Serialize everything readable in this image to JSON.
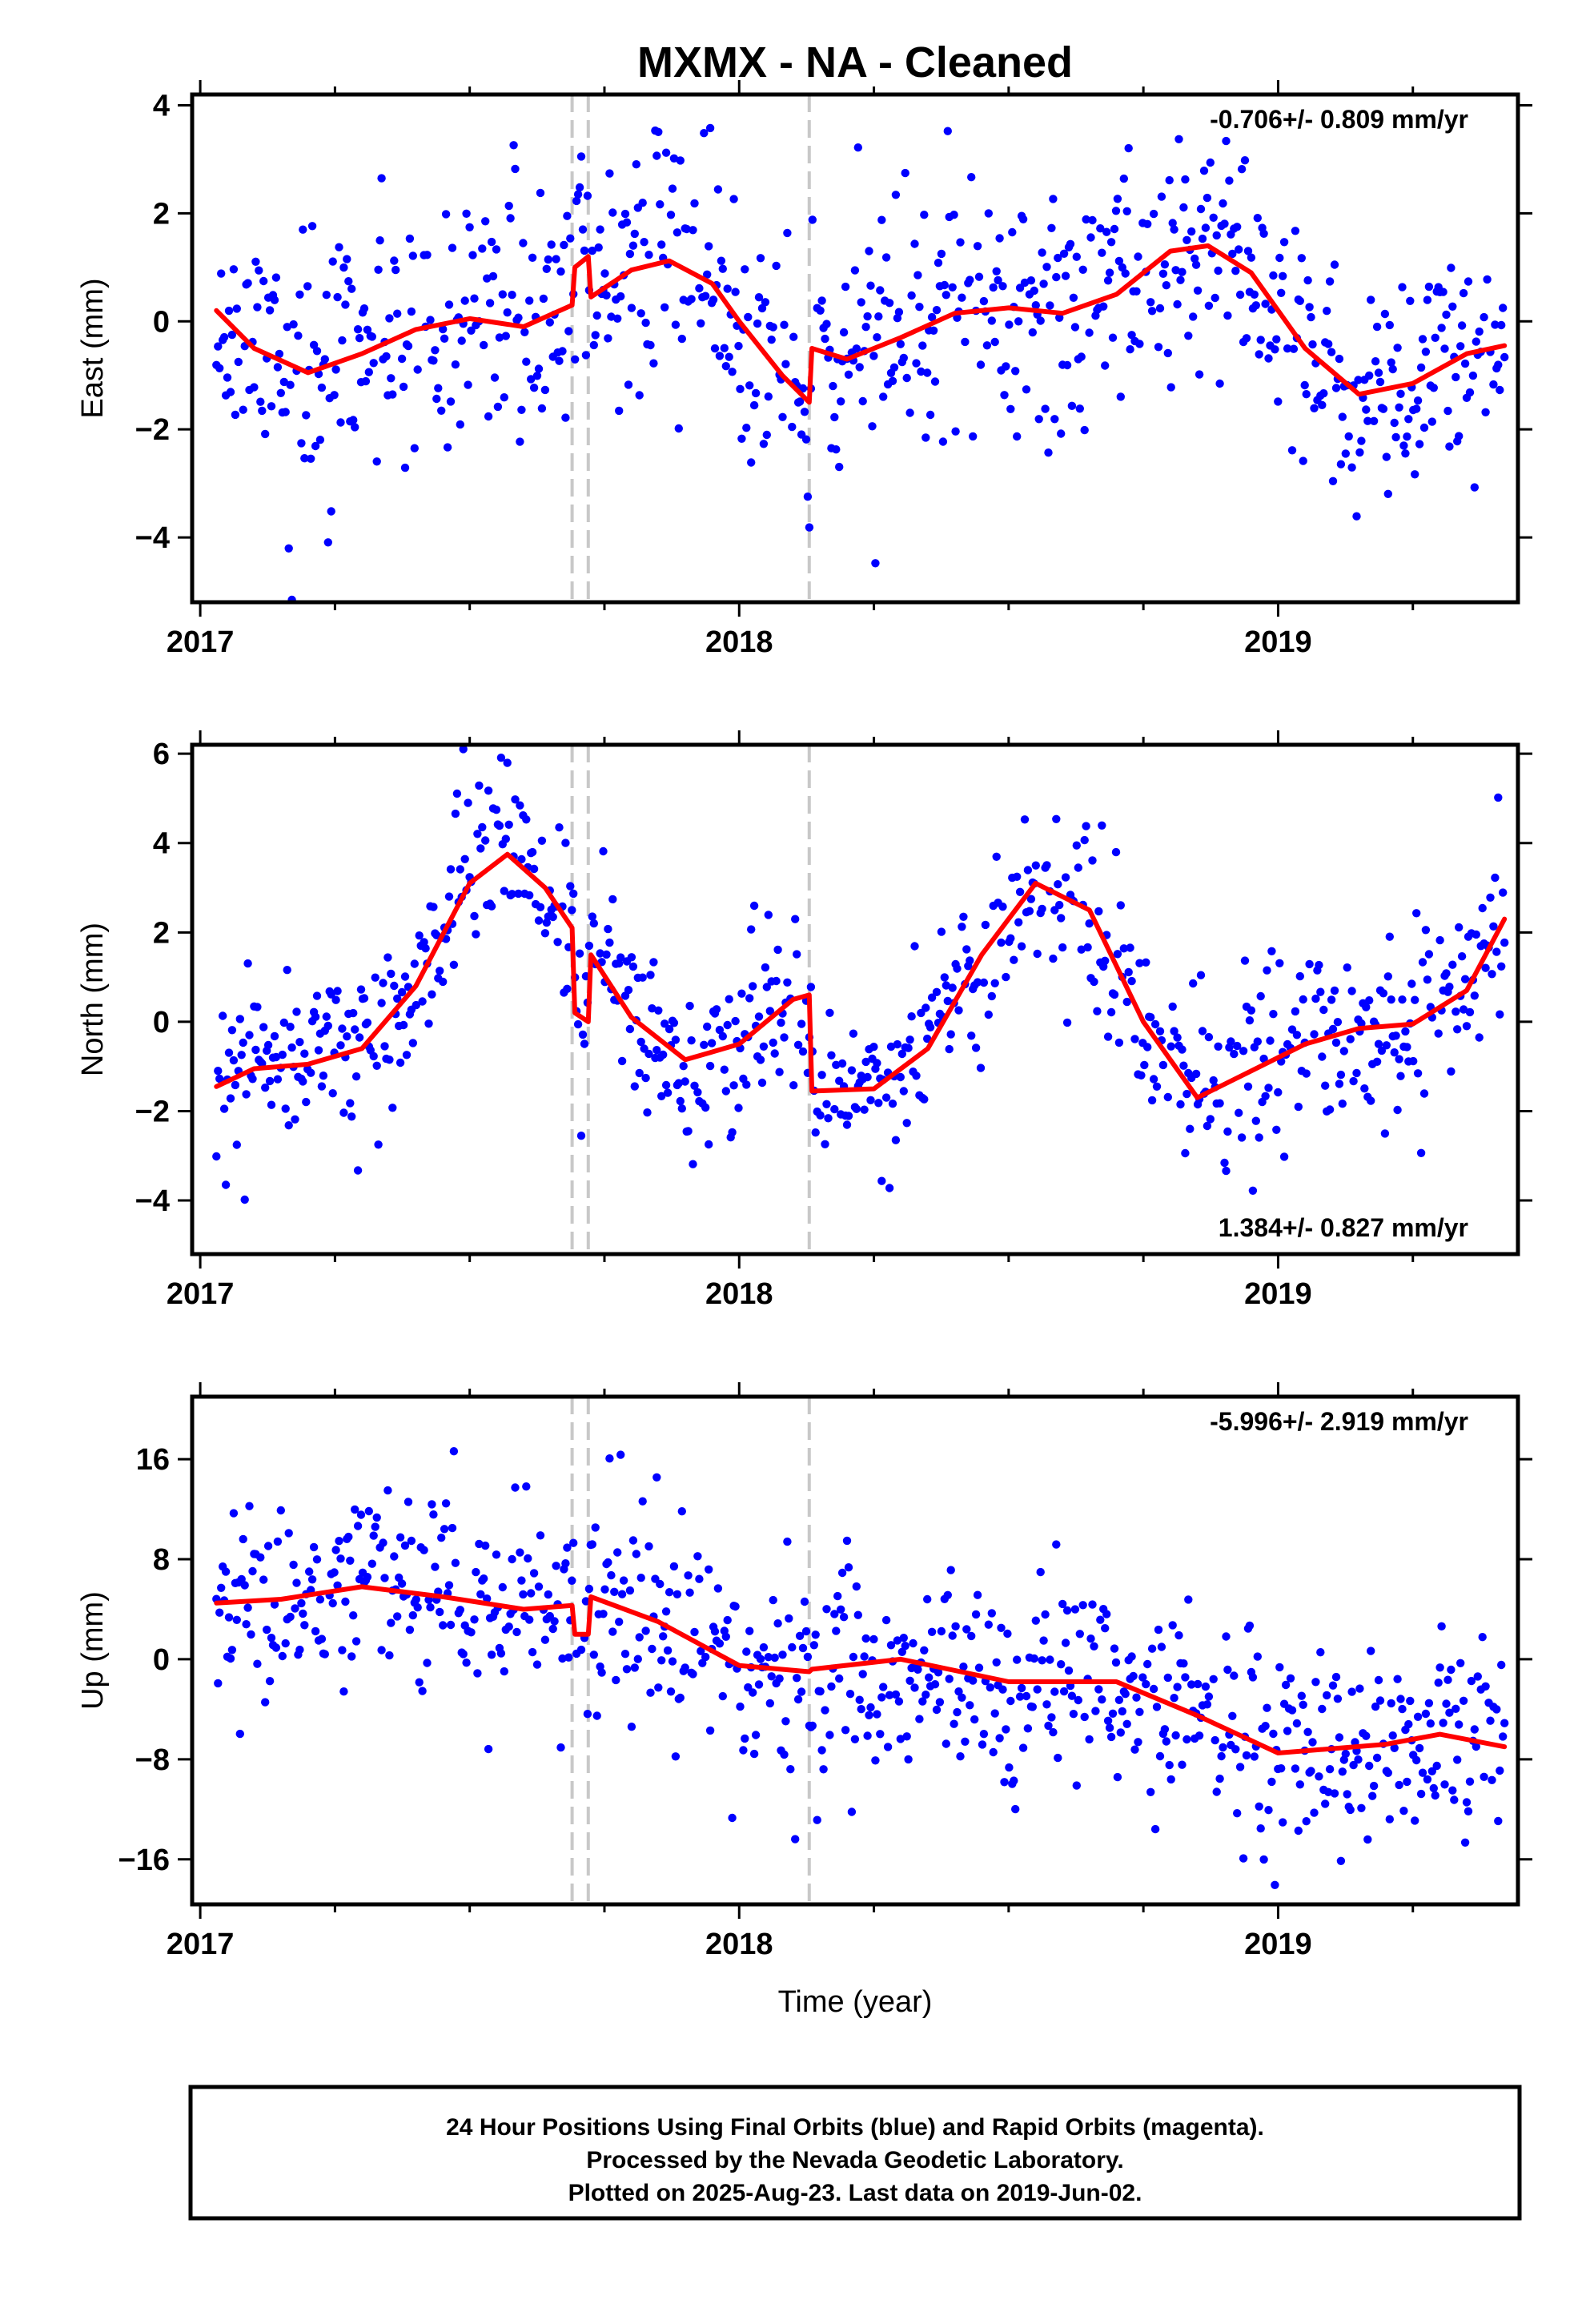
{
  "title": "MXMX  - NA - Cleaned",
  "xlabel": "Time (year)",
  "footer": [
    "24 Hour Positions Using Final Orbits (blue) and Rapid Orbits (magenta).",
    "Processed by the Nevada Geodetic Laboratory.",
    "Plotted on 2025-Aug-23. Last data on 2019-Jun-02."
  ],
  "colors": {
    "points": "#0000ff",
    "model": "#ff0000",
    "breaks": "#c8c8c8",
    "frame": "#000000"
  },
  "chart_data": [
    {
      "type": "scatter",
      "name": "east",
      "ylabel": "East (mm)",
      "rate_text": "-0.706+/- 0.809 mm/yr",
      "rate_position": "top-right",
      "xlim": [
        2016.985,
        2019.445
      ],
      "ylim": [
        -5.2,
        4.2
      ],
      "xticks": [
        2017,
        2018,
        2019
      ],
      "xtick_labels": [
        "2017",
        "2018",
        "2019"
      ],
      "yticks": [
        -4,
        -2,
        0,
        2,
        4
      ],
      "ytick_labels": [
        "−4",
        "−2",
        "0",
        "2",
        "4"
      ],
      "breaks": [
        2017.69,
        2017.72,
        2018.13
      ],
      "model_knots": [
        [
          2017.03,
          0.2
        ],
        [
          2017.1,
          -0.5
        ],
        [
          2017.2,
          -0.95
        ],
        [
          2017.3,
          -0.6
        ],
        [
          2017.4,
          -0.15
        ],
        [
          2017.5,
          0.05
        ],
        [
          2017.6,
          -0.1
        ],
        [
          2017.69,
          0.3
        ],
        [
          2017.695,
          1.0
        ],
        [
          2017.72,
          1.2
        ],
        [
          2017.725,
          0.45
        ],
        [
          2017.8,
          0.95
        ],
        [
          2017.87,
          1.12
        ],
        [
          2017.95,
          0.7
        ],
        [
          2018.0,
          0.0
        ],
        [
          2018.08,
          -1.0
        ],
        [
          2018.13,
          -1.5
        ],
        [
          2018.135,
          -0.5
        ],
        [
          2018.2,
          -0.7
        ],
        [
          2018.3,
          -0.3
        ],
        [
          2018.4,
          0.15
        ],
        [
          2018.5,
          0.25
        ],
        [
          2018.6,
          0.15
        ],
        [
          2018.7,
          0.5
        ],
        [
          2018.8,
          1.3
        ],
        [
          2018.87,
          1.4
        ],
        [
          2018.95,
          0.9
        ],
        [
          2019.05,
          -0.5
        ],
        [
          2019.15,
          -1.35
        ],
        [
          2019.25,
          -1.15
        ],
        [
          2019.35,
          -0.6
        ],
        [
          2019.42,
          -0.45
        ]
      ],
      "seed": 11,
      "noise": 1.15,
      "point_count": 820
    },
    {
      "type": "scatter",
      "name": "north",
      "ylabel": "North (mm)",
      "rate_text": "1.384+/- 0.827 mm/yr",
      "rate_position": "bottom-right",
      "xlim": [
        2016.985,
        2019.445
      ],
      "ylim": [
        -5.2,
        6.2
      ],
      "xticks": [
        2017,
        2018,
        2019
      ],
      "xtick_labels": [
        "2017",
        "2018",
        "2019"
      ],
      "yticks": [
        -4,
        -2,
        0,
        2,
        4,
        6
      ],
      "ytick_labels": [
        "−4",
        "−2",
        "0",
        "2",
        "4",
        "6"
      ],
      "breaks": [
        2017.69,
        2017.72,
        2018.13
      ],
      "model_knots": [
        [
          2017.03,
          -1.45
        ],
        [
          2017.1,
          -1.05
        ],
        [
          2017.2,
          -0.95
        ],
        [
          2017.3,
          -0.6
        ],
        [
          2017.4,
          0.8
        ],
        [
          2017.5,
          3.1
        ],
        [
          2017.57,
          3.75
        ],
        [
          2017.64,
          3.0
        ],
        [
          2017.69,
          2.1
        ],
        [
          2017.695,
          0.2
        ],
        [
          2017.72,
          0.0
        ],
        [
          2017.725,
          1.5
        ],
        [
          2017.8,
          0.1
        ],
        [
          2017.9,
          -0.85
        ],
        [
          2018.0,
          -0.5
        ],
        [
          2018.1,
          0.5
        ],
        [
          2018.13,
          0.6
        ],
        [
          2018.135,
          -1.55
        ],
        [
          2018.25,
          -1.5
        ],
        [
          2018.35,
          -0.6
        ],
        [
          2018.45,
          1.5
        ],
        [
          2018.55,
          3.1
        ],
        [
          2018.65,
          2.5
        ],
        [
          2018.75,
          0.0
        ],
        [
          2018.85,
          -1.7
        ],
        [
          2018.95,
          -1.1
        ],
        [
          2019.05,
          -0.5
        ],
        [
          2019.15,
          -0.15
        ],
        [
          2019.25,
          -0.05
        ],
        [
          2019.35,
          0.7
        ],
        [
          2019.42,
          2.3
        ]
      ],
      "seed": 23,
      "noise": 1.0,
      "point_count": 820
    },
    {
      "type": "scatter",
      "name": "up",
      "ylabel": "Up (mm)",
      "rate_text": "-5.996+/- 2.919 mm/yr",
      "rate_position": "top-right",
      "xlim": [
        2016.985,
        2019.445
      ],
      "ylim": [
        -19.6,
        21
      ],
      "xticks": [
        2017,
        2018,
        2019
      ],
      "xtick_labels": [
        "2017",
        "2018",
        "2019"
      ],
      "yticks": [
        -16,
        -8,
        0,
        8,
        16
      ],
      "ytick_labels": [
        "−16",
        "−8",
        "0",
        "8",
        "16"
      ],
      "breaks": [
        2017.69,
        2017.72,
        2018.13
      ],
      "model_knots": [
        [
          2017.03,
          4.5
        ],
        [
          2017.15,
          4.8
        ],
        [
          2017.3,
          5.8
        ],
        [
          2017.45,
          5.0
        ],
        [
          2017.6,
          4.0
        ],
        [
          2017.69,
          4.3
        ],
        [
          2017.695,
          2.0
        ],
        [
          2017.72,
          2.0
        ],
        [
          2017.725,
          5.0
        ],
        [
          2017.85,
          3.0
        ],
        [
          2018.0,
          -0.5
        ],
        [
          2018.13,
          -1.0
        ],
        [
          2018.135,
          -0.8
        ],
        [
          2018.3,
          0.0
        ],
        [
          2018.5,
          -1.8
        ],
        [
          2018.7,
          -1.8
        ],
        [
          2018.85,
          -4.5
        ],
        [
          2019.0,
          -7.5
        ],
        [
          2019.2,
          -6.8
        ],
        [
          2019.3,
          -6.0
        ],
        [
          2019.42,
          -7.0
        ]
      ],
      "seed": 37,
      "noise": 4.2,
      "point_count": 820
    }
  ]
}
